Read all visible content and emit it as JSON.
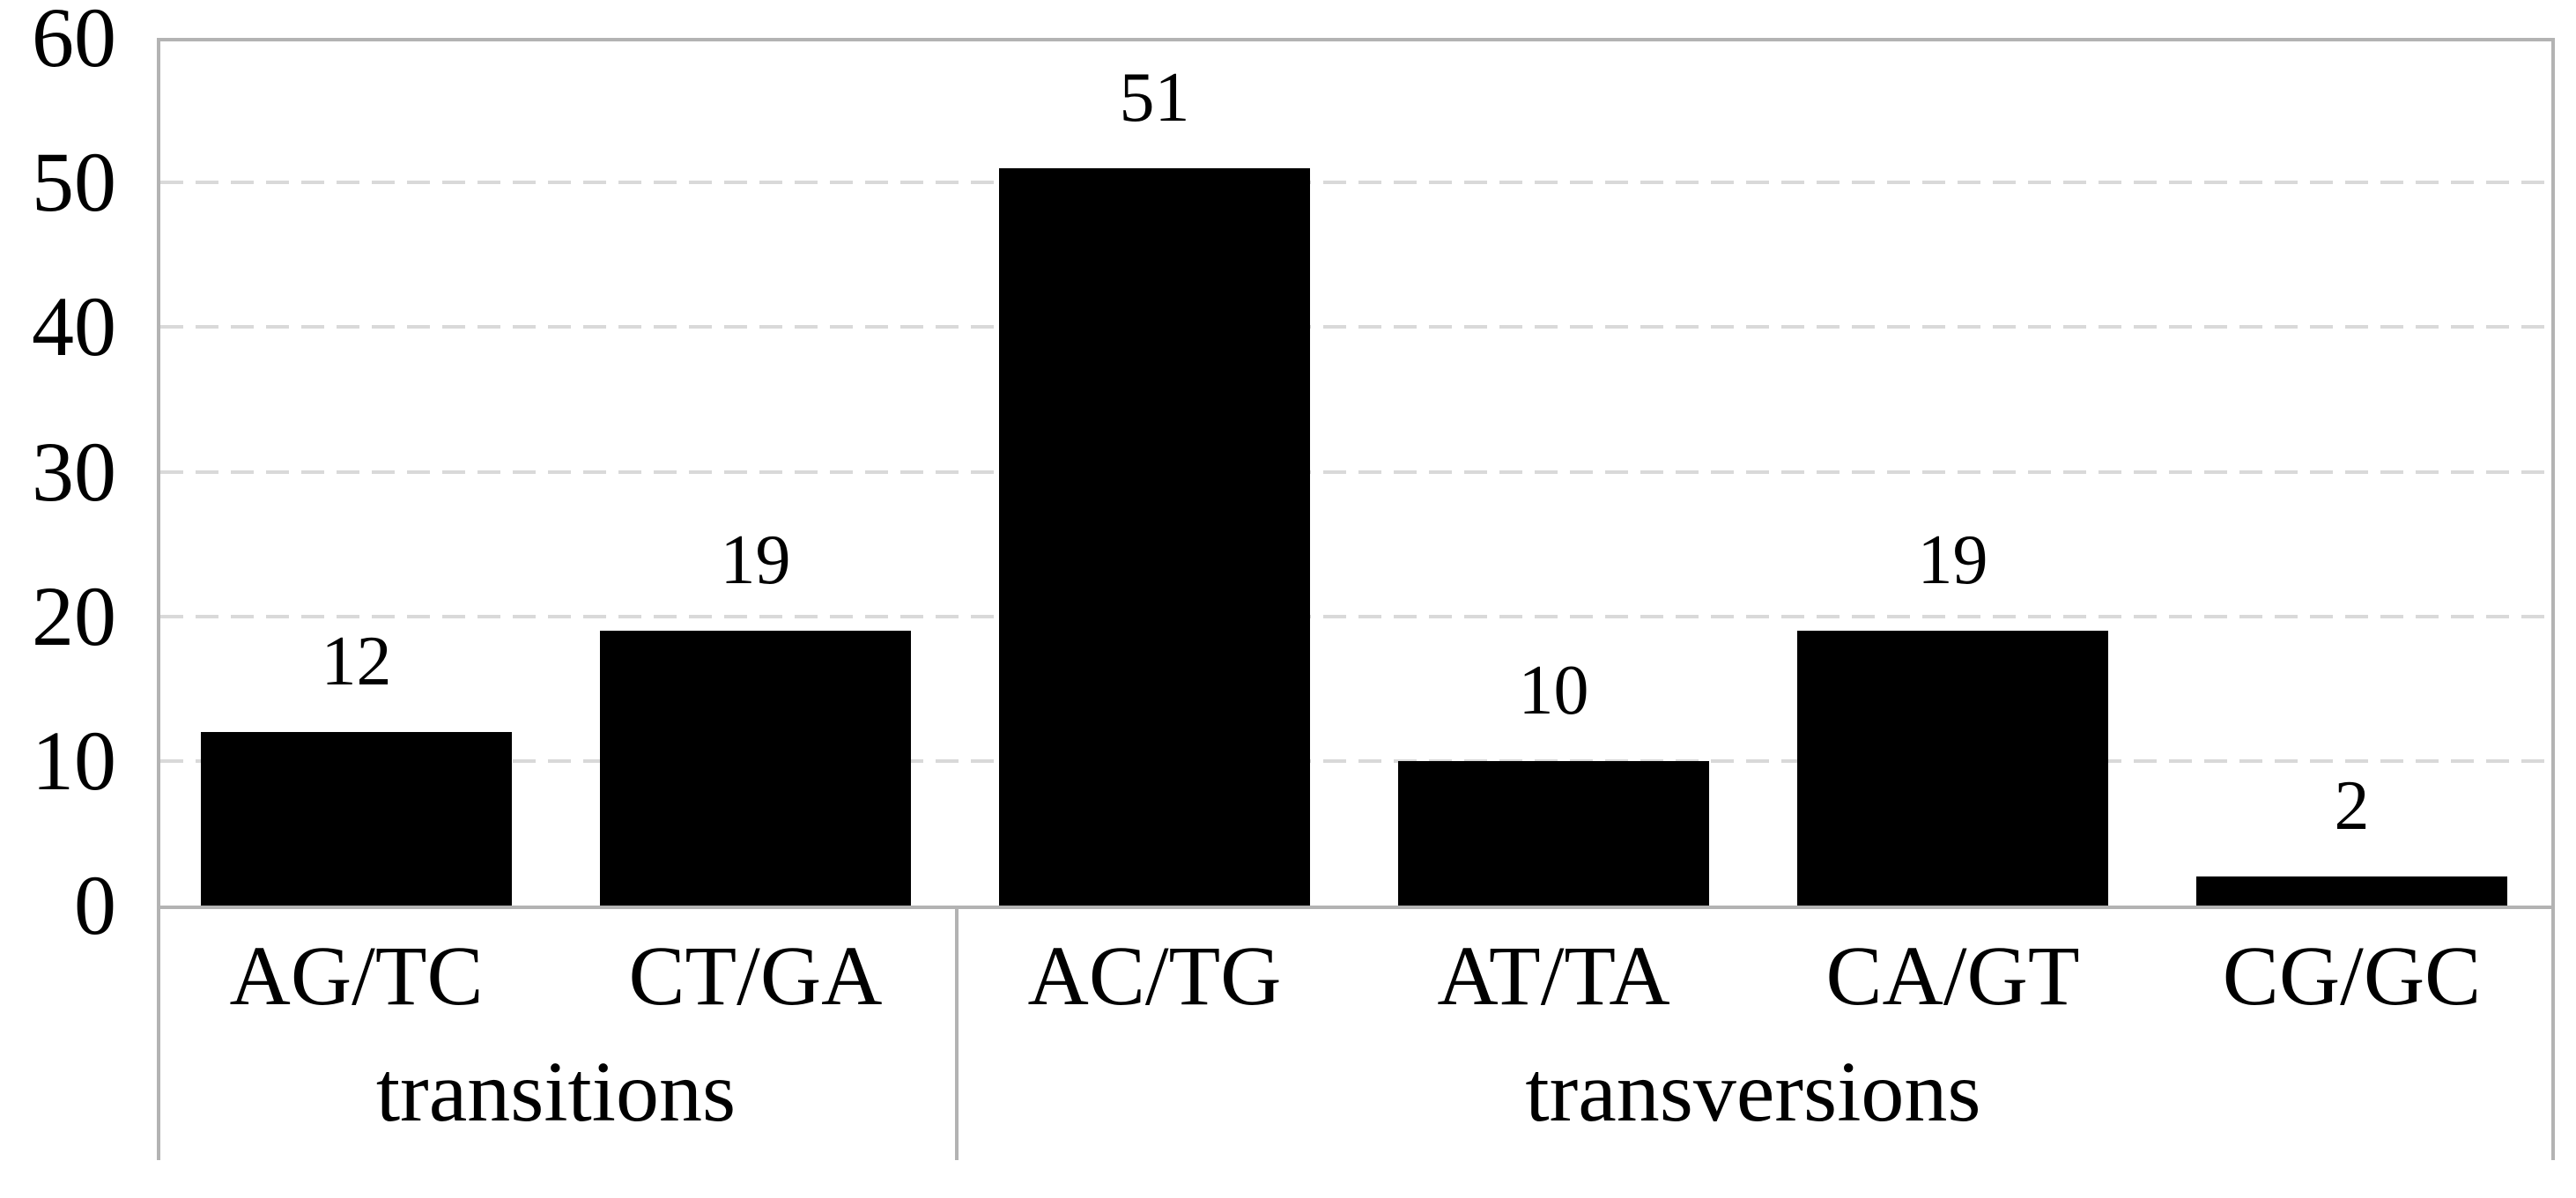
{
  "chart_data": {
    "type": "bar",
    "title": "",
    "xlabel": "",
    "ylabel": "",
    "categories": [
      "AG/TC",
      "CT/GA",
      "AC/TG",
      "AT/TA",
      "CA/GT",
      "CG/GC"
    ],
    "values": [
      12,
      19,
      51,
      10,
      19,
      2
    ],
    "data_labels": [
      "12",
      "19",
      "51",
      "10",
      "19",
      "2"
    ],
    "groups": [
      {
        "label": "transitions",
        "span": 2
      },
      {
        "label": "transversions",
        "span": 4
      }
    ],
    "y_axis": {
      "min": 0,
      "max": 60,
      "step": 10,
      "tick_labels": [
        "0",
        "10",
        "20",
        "30",
        "40",
        "50",
        "60"
      ]
    },
    "legend": "none",
    "grid": "dashed-horizontal",
    "colors": {
      "bar": "#000000",
      "axis_line": "#b3b3b3",
      "gridline": "#d9d9d9",
      "text": "#000000",
      "background": "#ffffff"
    }
  }
}
